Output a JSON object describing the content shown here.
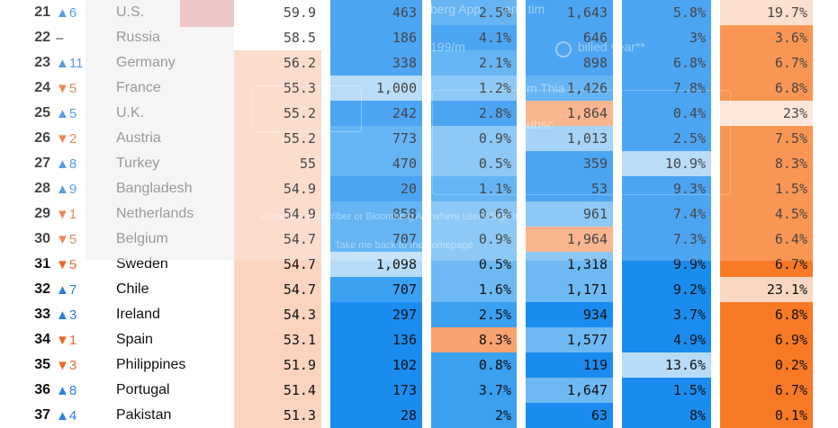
{
  "rows": [
    {
      "rank": "21",
      "dir": "up",
      "change": "6",
      "country": "U.S.",
      "score": "59.9",
      "a": "463",
      "b": "2.5%",
      "c": "1,643",
      "d": "5.8%",
      "e": "19.7%"
    },
    {
      "rank": "22",
      "dir": "flat",
      "change": "–",
      "country": "Russia",
      "score": "58.5",
      "a": "186",
      "b": "4.1%",
      "c": "646",
      "d": "3%",
      "e": "3.6%"
    },
    {
      "rank": "23",
      "dir": "up",
      "change": "11",
      "country": "Germany",
      "score": "56.2",
      "a": "338",
      "b": "2.1%",
      "c": "898",
      "d": "6.8%",
      "e": "6.7%"
    },
    {
      "rank": "24",
      "dir": "down",
      "change": "5",
      "country": "France",
      "score": "55.3",
      "a": "1,000",
      "b": "1.2%",
      "c": "1,426",
      "d": "7.8%",
      "e": "6.8%"
    },
    {
      "rank": "25",
      "dir": "up",
      "change": "5",
      "country": "U.K.",
      "score": "55.2",
      "a": "242",
      "b": "2.8%",
      "c": "1,864",
      "d": "0.4%",
      "e": "23%"
    },
    {
      "rank": "26",
      "dir": "down",
      "change": "2",
      "country": "Austria",
      "score": "55.2",
      "a": "773",
      "b": "0.9%",
      "c": "1,013",
      "d": "2.5%",
      "e": "7.5%"
    },
    {
      "rank": "27",
      "dir": "up",
      "change": "8",
      "country": "Turkey",
      "score": "55",
      "a": "470",
      "b": "0.5%",
      "c": "359",
      "d": "10.9%",
      "e": "8.3%"
    },
    {
      "rank": "28",
      "dir": "up",
      "change": "9",
      "country": "Bangladesh",
      "score": "54.9",
      "a": "20",
      "b": "1.1%",
      "c": "53",
      "d": "9.3%",
      "e": "1.5%"
    },
    {
      "rank": "29",
      "dir": "down",
      "change": "1",
      "country": "Netherlands",
      "score": "54.9",
      "a": "858",
      "b": "0.6%",
      "c": "961",
      "d": "7.4%",
      "e": "4.5%"
    },
    {
      "rank": "30",
      "dir": "down",
      "change": "5",
      "country": "Belgium",
      "score": "54.7",
      "a": "707",
      "b": "0.9%",
      "c": "1,964",
      "d": "7.3%",
      "e": "6.4%"
    },
    {
      "rank": "31",
      "dir": "down",
      "change": "5",
      "country": "Sweden",
      "score": "54.7",
      "a": "1,098",
      "b": "0.5%",
      "c": "1,318",
      "d": "9.9%",
      "e": "6.7%"
    },
    {
      "rank": "32",
      "dir": "up",
      "change": "7",
      "country": "Chile",
      "score": "54.7",
      "a": "707",
      "b": "1.6%",
      "c": "1,171",
      "d": "9.2%",
      "e": "23.1%"
    },
    {
      "rank": "33",
      "dir": "up",
      "change": "3",
      "country": "Ireland",
      "score": "54.3",
      "a": "297",
      "b": "2.5%",
      "c": "934",
      "d": "3.7%",
      "e": "6.8%"
    },
    {
      "rank": "34",
      "dir": "down",
      "change": "1",
      "country": "Spain",
      "score": "53.1",
      "a": "136",
      "b": "8.3%",
      "c": "1,577",
      "d": "4.9%",
      "e": "6.9%"
    },
    {
      "rank": "35",
      "dir": "down",
      "change": "3",
      "country": "Philippines",
      "score": "51.9",
      "a": "102",
      "b": "0.8%",
      "c": "119",
      "d": "13.6%",
      "e": "0.2%"
    },
    {
      "rank": "36",
      "dir": "up",
      "change": "8",
      "country": "Portugal",
      "score": "51.4",
      "a": "173",
      "b": "3.7%",
      "c": "1,647",
      "d": "1.5%",
      "e": "6.7%"
    },
    {
      "rank": "37",
      "dir": "up",
      "change": "4",
      "country": "Pakistan",
      "score": "51.3",
      "a": "28",
      "b": "2%",
      "c": "63",
      "d": "8%",
      "e": "0.1%"
    }
  ],
  "cell_colors": [
    {
      "score": "#ffffff",
      "a": "#1a8cf0",
      "b": "#3aa0f2",
      "c": "#1a8cf0",
      "d": "#1a8cf0",
      "e": "#fbd6c1"
    },
    {
      "score": "#ffffff",
      "a": "#1a8cf0",
      "b": "#1a8cf0",
      "c": "#1a8cf0",
      "d": "#1a8cf0",
      "e": "#f97925"
    },
    {
      "score": "#fcd3bf",
      "a": "#1a8cf0",
      "b": "#3aa0f2",
      "c": "#1a8cf0",
      "d": "#1a8cf0",
      "e": "#f97925"
    },
    {
      "score": "#fcd3bf",
      "a": "#a6d3f8",
      "b": "#6db9f4",
      "c": "#3aa0f2",
      "d": "#1a8cf0",
      "e": "#f97925"
    },
    {
      "score": "#fcd3bf",
      "a": "#1a8cf0",
      "b": "#1a8cf0",
      "c": "#f8a26f",
      "d": "#1a8cf0",
      "e": "#fbe0d0"
    },
    {
      "score": "#fcd3bf",
      "a": "#3aa0f2",
      "b": "#6db9f4",
      "c": "#8dc7f6",
      "d": "#1a8cf0",
      "e": "#f97925"
    },
    {
      "score": "#fcd3bf",
      "a": "#3aa0f2",
      "b": "#6db9f4",
      "c": "#1a8cf0",
      "d": "#a6d3f8",
      "e": "#f97925"
    },
    {
      "score": "#fcd3bf",
      "a": "#1a8cf0",
      "b": "#3aa0f2",
      "c": "#1a8cf0",
      "d": "#1a8cf0",
      "e": "#f97925"
    },
    {
      "score": "#fcd3bf",
      "a": "#3aa0f2",
      "b": "#6db9f4",
      "c": "#6db9f4",
      "d": "#1a8cf0",
      "e": "#f97925"
    },
    {
      "score": "#fcd3bf",
      "a": "#3aa0f2",
      "b": "#6db9f4",
      "c": "#f8a26f",
      "d": "#1a8cf0",
      "e": "#f97925"
    },
    {
      "score": "#fcd3bf",
      "a": "#b6dcf9",
      "b": "#6db9f4",
      "c": "#6db9f4",
      "d": "#1a8cf0",
      "e": "#f97925"
    },
    {
      "score": "#fcd3bf",
      "a": "#3aa0f2",
      "b": "#6db9f4",
      "c": "#6db9f4",
      "d": "#1a8cf0",
      "e": "#fbd6c1"
    },
    {
      "score": "#fcd3bf",
      "a": "#1a8cf0",
      "b": "#3aa0f2",
      "c": "#1a8cf0",
      "d": "#1a8cf0",
      "e": "#f97925"
    },
    {
      "score": "#fcd3bf",
      "a": "#1a8cf0",
      "b": "#f8a26f",
      "c": "#6db9f4",
      "d": "#1a8cf0",
      "e": "#f97925"
    },
    {
      "score": "#fcd3bf",
      "a": "#1a8cf0",
      "b": "#3aa0f2",
      "c": "#1a8cf0",
      "d": "#b6dcf9",
      "e": "#f97925"
    },
    {
      "score": "#fcd3bf",
      "a": "#1a8cf0",
      "b": "#3aa0f2",
      "c": "#6db9f4",
      "d": "#1a8cf0",
      "e": "#f97925"
    },
    {
      "score": "#fcd3bf",
      "a": "#1a8cf0",
      "b": "#3aa0f2",
      "c": "#1a8cf0",
      "d": "#1a8cf0",
      "e": "#f97925"
    }
  ],
  "arrows": {
    "up": "▲",
    "down": "▼",
    "flat": ""
  },
  "overlay_text": {
    "line1": "berg App",
    "line2": "any tim",
    "price": "199/m",
    "period": "billed year**",
    "name": "m Thia",
    "sub": "ubsc",
    "signin": "Already a subscriber or Bloomberg Anywhere user? Sign in",
    "home": "Take me back to the homepage"
  }
}
